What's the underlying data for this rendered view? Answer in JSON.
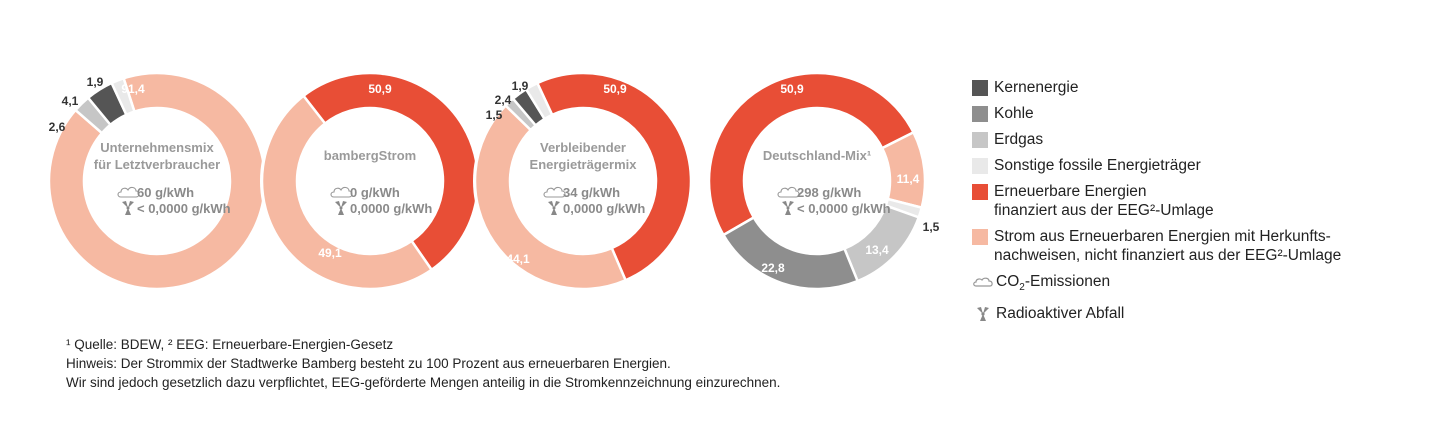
{
  "colors": {
    "kernenergie": "#555555",
    "kohle": "#8e8e8e",
    "erdgas": "#c6c6c6",
    "sonstige": "#e9e9e9",
    "eeg": "#e84e36",
    "herkunft": "#f6b9a2"
  },
  "chart_data": [
    {
      "type": "pie",
      "title": "Unternehmensmix für Letztverbraucher",
      "co2": "60 g/kWh",
      "radioactive": "< 0,0000 g/kWh",
      "segments": [
        {
          "category": "herkunft",
          "value": 91.4,
          "label": "91,4"
        },
        {
          "category": "erdgas",
          "value": 2.6,
          "label": "2,6"
        },
        {
          "category": "kernenergie",
          "value": 4.1,
          "label": "4,1"
        },
        {
          "category": "sonstige",
          "value": 1.9,
          "label": "1,9"
        }
      ]
    },
    {
      "type": "pie",
      "title": "bambergStrom",
      "co2": "0 g/kWh",
      "radioactive": "0,0000 g/kWh",
      "segments": [
        {
          "category": "eeg",
          "value": 50.9,
          "label": "50,9"
        },
        {
          "category": "herkunft",
          "value": 49.1,
          "label": "49,1"
        }
      ]
    },
    {
      "type": "pie",
      "title": "Verbleibender Energieträgermix",
      "co2": "34 g/kWh",
      "radioactive": "0,0000 g/kWh",
      "segments": [
        {
          "category": "eeg",
          "value": 50.9,
          "label": "50,9"
        },
        {
          "category": "herkunft",
          "value": 44.1,
          "label": "44,1"
        },
        {
          "category": "erdgas",
          "value": 1.5,
          "label": "1,5"
        },
        {
          "category": "kernenergie",
          "value": 2.4,
          "label": "2,4"
        },
        {
          "category": "sonstige",
          "value": 1.9,
          "label": "1,9"
        }
      ]
    },
    {
      "type": "pie",
      "title": "Deutschland-Mix¹",
      "co2": "298 g/kWh",
      "radioactive": "< 0,0000 g/kWh",
      "segments": [
        {
          "category": "eeg",
          "value": 50.9,
          "label": "50,9"
        },
        {
          "category": "herkunft",
          "value": 11.4,
          "label": "11,4"
        },
        {
          "category": "sonstige",
          "value": 1.5,
          "label": "1,5"
        },
        {
          "category": "erdgas",
          "value": 13.4,
          "label": "13,4"
        },
        {
          "category": "kohle",
          "value": 22.8,
          "label": "22,8"
        }
      ]
    }
  ],
  "legend": {
    "kernenergie": "Kernenergie",
    "kohle": "Kohle",
    "erdgas": "Erdgas",
    "sonstige": "Sonstige fossile Energieträger",
    "eeg_1": "Erneuerbare Energien",
    "eeg_2": "finanziert aus der EEG²-Umlage",
    "herkunft_1": "Strom aus Erneuerbaren Energien mit Herkunfts-",
    "herkunft_2": "nachweisen, nicht finanziert aus der EEG²-Umlage",
    "co2_prefix": "CO",
    "co2_sub": "2",
    "co2_suffix": "-Emissionen",
    "radioactive": "Radioaktiver Abfall"
  },
  "footnotes": [
    "¹ Quelle: BDEW, ² EEG: Erneuerbare-Energien-Gesetz",
    "Hinweis: Der Strommix der Stadtwerke Bamberg besteht zu 100 Prozent aus erneuerbaren Energien.",
    "Wir sind jedoch gesetzlich dazu verpflichtet, EEG-geförderte Mengen anteilig in die Stromkennzeichnung einzurechnen."
  ]
}
